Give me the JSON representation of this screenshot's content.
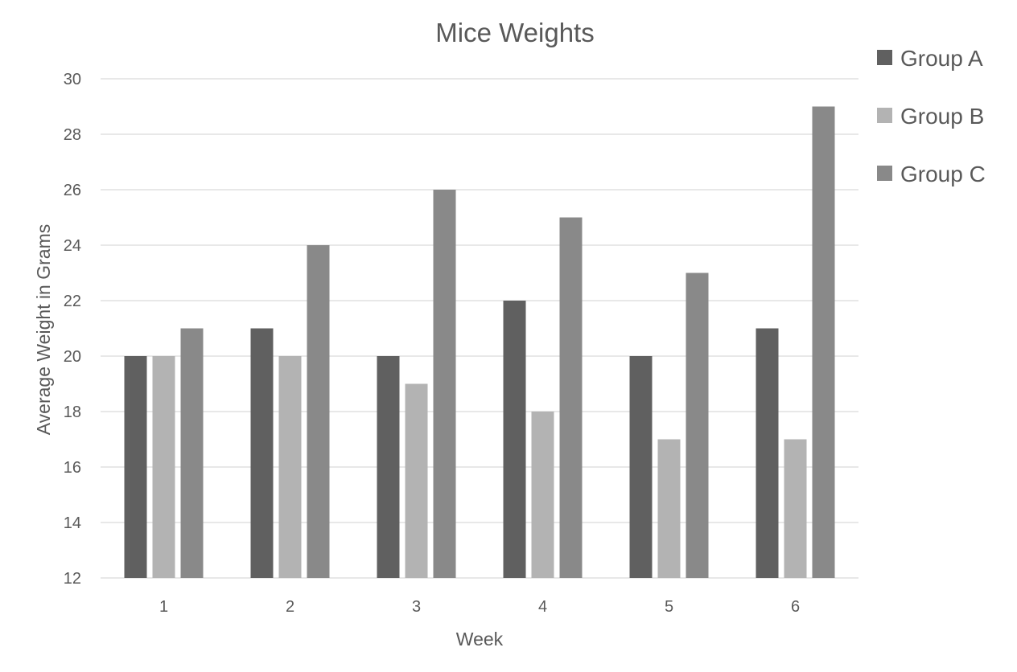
{
  "chart_data": {
    "type": "bar",
    "title": "Mice Weights",
    "xlabel": "Week",
    "ylabel": "Average Weight in Grams",
    "categories": [
      "1",
      "2",
      "3",
      "4",
      "5",
      "6"
    ],
    "series": [
      {
        "name": "Group A",
        "color": "#606060",
        "values": [
          20,
          21,
          20,
          22,
          20,
          21
        ]
      },
      {
        "name": "Group B",
        "color": "#b3b3b3",
        "values": [
          20,
          20,
          19,
          18,
          17,
          17
        ]
      },
      {
        "name": "Group C",
        "color": "#898989",
        "values": [
          21,
          24,
          26,
          25,
          23,
          29
        ]
      }
    ],
    "ylim": [
      12,
      30
    ],
    "yticks": [
      12,
      14,
      16,
      18,
      20,
      22,
      24,
      26,
      28,
      30
    ],
    "grid": true,
    "legend_position": "right"
  }
}
